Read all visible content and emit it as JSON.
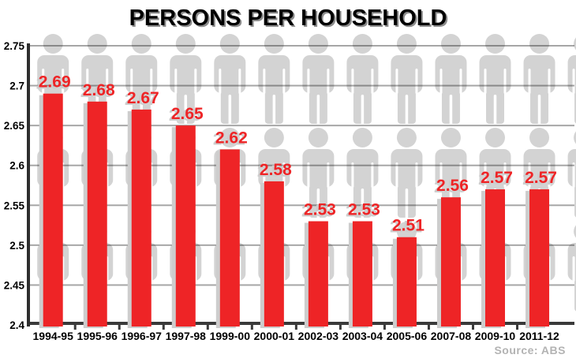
{
  "chart_data": {
    "type": "bar",
    "title": "PERSONS PER HOUSEHOLD",
    "source": "Source: ABS",
    "categories": [
      "1994-95",
      "1995-96",
      "1996-97",
      "1997-98",
      "1999-00",
      "2000-01",
      "2002-03",
      "2003-04",
      "2005-06",
      "2007-08",
      "2009-10",
      "2011-12"
    ],
    "values": [
      2.69,
      2.68,
      2.67,
      2.65,
      2.62,
      2.58,
      2.53,
      2.53,
      2.51,
      2.56,
      2.57,
      2.57
    ],
    "value_labels": [
      "2.69",
      "2.68",
      "2.67",
      "2.65",
      "2.62",
      "2.58",
      "2.53",
      "2.53",
      "2.51",
      "2.56",
      "2.57",
      "2.57"
    ],
    "xlabel": "",
    "ylabel": "",
    "ylim": [
      2.4,
      2.75
    ],
    "y_ticks": [
      "2.75",
      "2.7",
      "2.65",
      "2.6",
      "2.55",
      "2.5",
      "2.45",
      "2.4"
    ],
    "grid": true,
    "legend": false,
    "background_motif": "person-pictogram-grid",
    "colors": {
      "bar": "#EE2426",
      "value_label": "#EE2426",
      "bar_shadow": "#CDCDCD",
      "person": "#D3D3D3",
      "person_slit": "#FFFFFF",
      "gridline": "rgba(0,0,0,0.35)",
      "axis": "#3A3A3A",
      "axis_y": "#2E2E2E",
      "axis_label": "#000000",
      "title": "#000000",
      "source": "#B3B3B3",
      "background": "#FFFFFF"
    }
  }
}
